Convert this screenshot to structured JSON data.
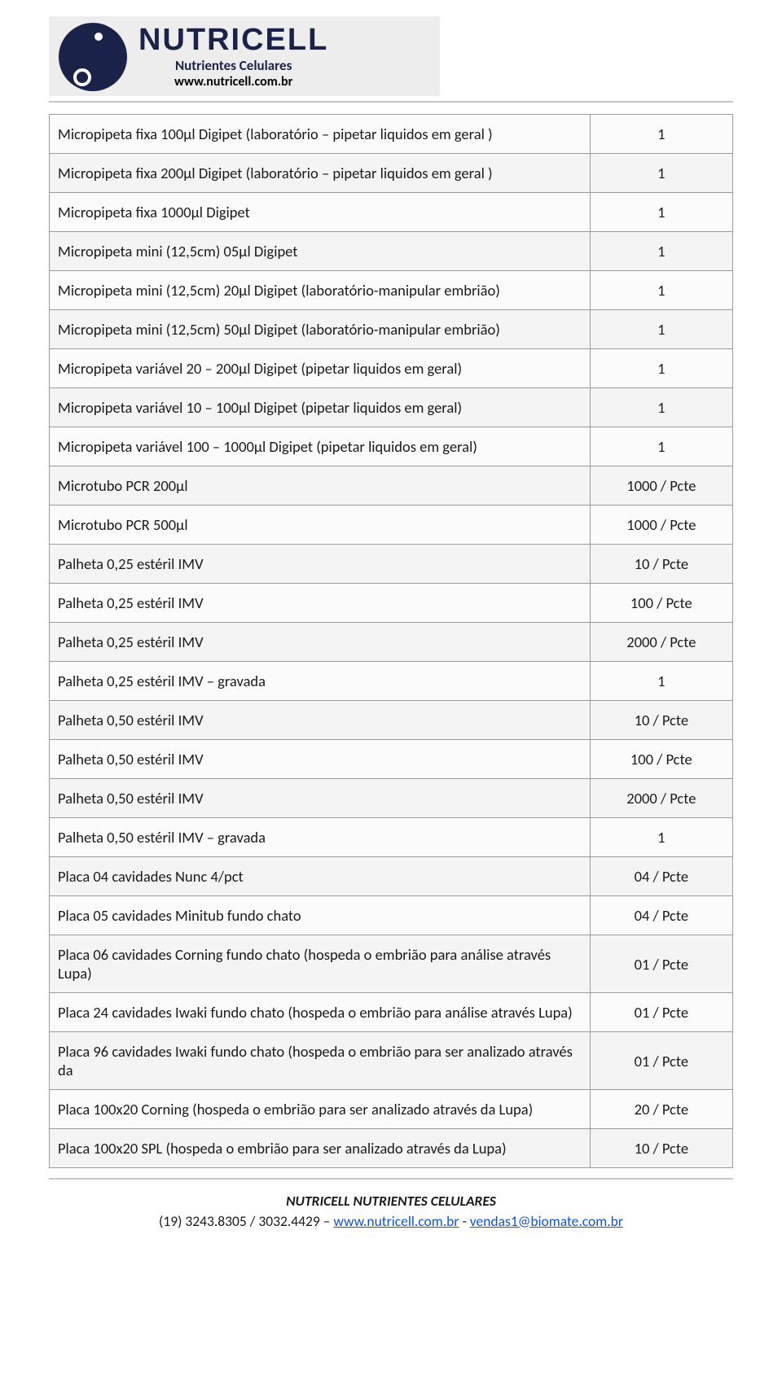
{
  "brand": {
    "name": "NUTRICELL",
    "subtitle": "Nutrientes Celulares",
    "url": "www.nutricell.com.br"
  },
  "table": {
    "rows": [
      {
        "desc": "Micropipeta fixa 100µl Digipet (laboratório – pipetar liquidos em geral )",
        "qty": "1"
      },
      {
        "desc": "Micropipeta fixa 200µl Digipet (laboratório – pipetar liquidos em geral )",
        "qty": "1"
      },
      {
        "desc": "Micropipeta fixa 1000µl Digipet",
        "qty": "1"
      },
      {
        "desc": "Micropipeta mini (12,5cm) 05µl Digipet",
        "qty": "1"
      },
      {
        "desc": "Micropipeta mini (12,5cm) 20µl Digipet (laboratório-manipular embrião)",
        "qty": "1"
      },
      {
        "desc": "Micropipeta mini (12,5cm) 50µl Digipet (laboratório-manipular embrião)",
        "qty": "1"
      },
      {
        "desc": "Micropipeta variável 20 – 200µl Digipet (pipetar liquidos em geral)",
        "qty": "1"
      },
      {
        "desc": "Micropipeta variável 10 – 100µl Digipet (pipetar liquidos em geral)",
        "qty": "1"
      },
      {
        "desc": "Micropipeta variável 100 – 1000µl Digipet (pipetar liquidos em geral)",
        "qty": "1"
      },
      {
        "desc": "Microtubo PCR 200µl",
        "qty": "1000 / Pcte"
      },
      {
        "desc": "Microtubo PCR 500µl",
        "qty": "1000 / Pcte"
      },
      {
        "desc": "Palheta 0,25 estéril IMV",
        "qty": "10 / Pcte"
      },
      {
        "desc": "Palheta 0,25 estéril IMV",
        "qty": "100 / Pcte"
      },
      {
        "desc": "Palheta 0,25 estéril IMV",
        "qty": "2000 / Pcte"
      },
      {
        "desc": "Palheta 0,25 estéril IMV – gravada",
        "qty": "1"
      },
      {
        "desc": "Palheta 0,50 estéril IMV",
        "qty": "10 / Pcte"
      },
      {
        "desc": "Palheta 0,50 estéril IMV",
        "qty": "100 / Pcte"
      },
      {
        "desc": "Palheta 0,50 estéril IMV",
        "qty": "2000 / Pcte"
      },
      {
        "desc": "Palheta 0,50 estéril IMV – gravada",
        "qty": "1"
      },
      {
        "desc": "Placa 04 cavidades Nunc 4/pct",
        "qty": "04 / Pcte"
      },
      {
        "desc": "Placa 05 cavidades Minitub fundo chato",
        "qty": "04 / Pcte"
      },
      {
        "desc": "Placa 06 cavidades Corning fundo chato (hospeda o embrião para análise através Lupa)",
        "qty": "01 / Pcte"
      },
      {
        "desc": "Placa 24 cavidades Iwaki fundo chato (hospeda o embrião para análise através Lupa)",
        "qty": "01 / Pcte"
      },
      {
        "desc": "Placa 96 cavidades Iwaki fundo chato (hospeda o embrião para ser analizado através da",
        "qty": "01 / Pcte"
      },
      {
        "desc": "Placa 100x20 Corning (hospeda o embrião para ser analizado através da Lupa)",
        "qty": "20 / Pcte"
      },
      {
        "desc": "Placa 100x20 SPL (hospeda o embrião para ser analizado através da Lupa)",
        "qty": "10 / Pcte"
      }
    ]
  },
  "footer": {
    "title": "NUTRICELL NUTRIENTES CELULARES",
    "phones": "(19) 3243.8305 / 3032.4429 – ",
    "link1": "www.nutricell.com.br",
    "sep": " - ",
    "link2": "vendas1@biomate.com.br"
  }
}
